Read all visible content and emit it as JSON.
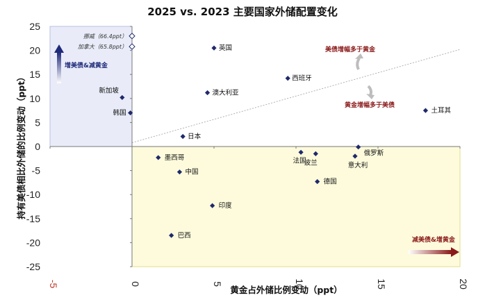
{
  "chart_data": {
    "type": "scatter",
    "title": "2025 vs. 2023 主要国家外储配置变化",
    "xlabel": "黄金占外储比例变动（ppt）",
    "ylabel": "持有美债相比外储的比例变动（ppt）",
    "xlim": [
      -5,
      20
    ],
    "ylim": [
      -25,
      25
    ],
    "x_ticks": [
      "-5",
      "0",
      "5",
      "10",
      "15",
      "20"
    ],
    "y_ticks": [
      "25",
      "20",
      "15",
      "10",
      "5",
      "0",
      "-5",
      "-10",
      "-15",
      "-20",
      "-25"
    ],
    "grid": false,
    "colors": {
      "point": "#1f2a6b",
      "quadrant_blue": "#e9ecf8",
      "quadrant_yellow": "#fdfbdc",
      "quadrant_blue_border": "#b8c0e0",
      "quadrant_yellow_border": "#e2dc8a",
      "annotation_red": "#8b1a1a",
      "annotation_blue": "#1f2a7a",
      "diagonal": "#b0b0b0"
    },
    "points": [
      {
        "label": "英国",
        "x": 5.0,
        "y": 20.5
      },
      {
        "label": "西班牙",
        "x": 9.5,
        "y": 14.2
      },
      {
        "label": "澳大利亚",
        "x": 4.6,
        "y": 11.2
      },
      {
        "label": "新加坡",
        "x": -0.6,
        "y": 10.2
      },
      {
        "label": "韩国",
        "x": -0.1,
        "y": 7.0
      },
      {
        "label": "日本",
        "x": 3.1,
        "y": 2.1
      },
      {
        "label": "土耳其",
        "x": 17.9,
        "y": 7.5
      },
      {
        "label": "墨西哥",
        "x": 1.6,
        "y": -2.3
      },
      {
        "label": "中国",
        "x": 2.9,
        "y": -5.3
      },
      {
        "label": "法国",
        "x": 10.3,
        "y": -1.2
      },
      {
        "label": "波兰",
        "x": 11.2,
        "y": -1.5
      },
      {
        "label": "意大利",
        "x": 13.6,
        "y": -2.0
      },
      {
        "label": "俄罗斯",
        "x": 13.8,
        "y": -0.1
      },
      {
        "label": "德国",
        "x": 11.3,
        "y": -7.3
      },
      {
        "label": "印度",
        "x": 4.9,
        "y": -12.3
      },
      {
        "label": "巴西",
        "x": 2.4,
        "y": -18.5
      }
    ],
    "offscale_points": [
      {
        "label": "挪威（66.4ppt）",
        "x": 0.0,
        "y": 23.0
      },
      {
        "label": "加拿大（65.8ppt）",
        "x": 0.0,
        "y": 20.8
      }
    ],
    "annotations": {
      "upper_left": "增美债&减黄金",
      "lower_right": "减美债&增黄金",
      "above_line": "美债增幅多于黄金",
      "below_line": "黄金增幅多于美债"
    },
    "diagonal_line": {
      "from": [
        0,
        0.8
      ],
      "to": [
        20,
        20.2
      ]
    }
  }
}
